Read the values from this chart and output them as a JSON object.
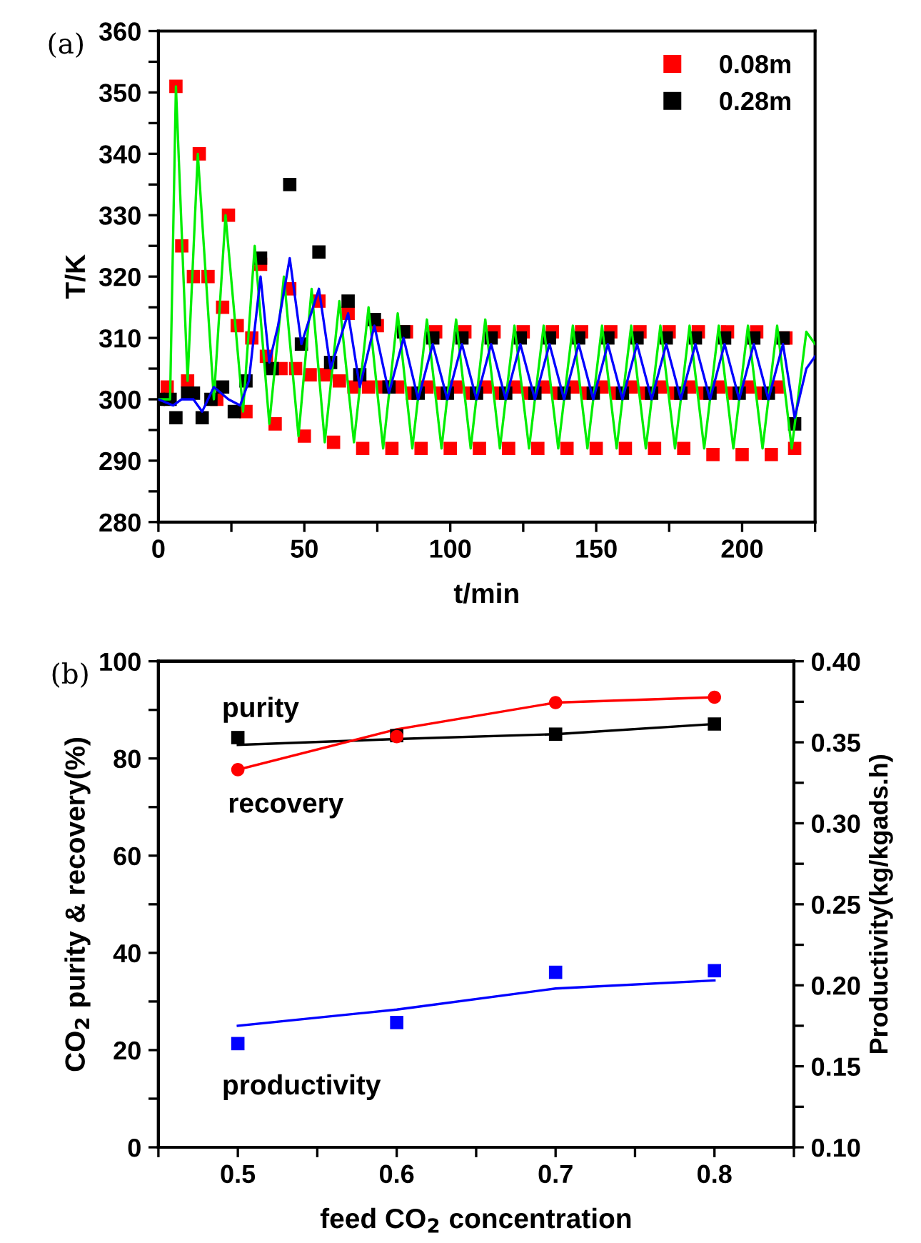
{
  "chart_data": [
    {
      "type": "scatter",
      "title": "(a)",
      "xlabel": "t/min",
      "ylabel": "T/K",
      "xlim": [
        0,
        225
      ],
      "ylim": [
        280,
        360
      ],
      "xticks": [
        0,
        {
          "value": 25,
          "label": null
        },
        50,
        {
          "value": 75,
          "label": null
        },
        100,
        {
          "value": 125,
          "label": null
        },
        150,
        {
          "value": 175,
          "label": null
        },
        200,
        {
          "value": 225,
          "label": null
        }
      ],
      "yticks": [
        280,
        {
          "value": 285,
          "label": null
        },
        290,
        {
          "value": 295,
          "label": null
        },
        300,
        {
          "value": 305,
          "label": null
        },
        310,
        {
          "value": 315,
          "label": null
        },
        320,
        {
          "value": 325,
          "label": null
        },
        330,
        {
          "value": 335,
          "label": null
        },
        340,
        {
          "value": 345,
          "label": null
        },
        350,
        {
          "value": 355,
          "label": null
        },
        360
      ],
      "legend": "top right",
      "grid": false,
      "series": [
        {
          "type": "line",
          "color": "#00ee00",
          "x": [
            0,
            4,
            6,
            10,
            13.5,
            19,
            23,
            29,
            33,
            38,
            43,
            48,
            52.5,
            57,
            62,
            67,
            72,
            77,
            82,
            87,
            92,
            97,
            102,
            107,
            112,
            117,
            122,
            127,
            132,
            137,
            142,
            147,
            152,
            157,
            162,
            167,
            172,
            177,
            182,
            187,
            192,
            197,
            202,
            207,
            212,
            217,
            222,
            225
          ],
          "values": [
            300,
            300,
            351,
            303,
            340,
            300,
            330,
            298,
            325,
            296,
            320,
            294,
            318,
            293,
            316,
            293,
            315,
            292,
            314,
            292,
            313,
            292,
            313,
            292,
            313,
            292,
            312,
            292,
            312,
            292,
            312,
            292,
            312,
            292,
            312,
            292,
            312,
            292,
            312,
            292,
            312,
            292,
            312,
            292,
            312,
            292,
            311,
            309
          ]
        },
        {
          "name": "0.08m",
          "color": "#ff0000",
          "marker": "square",
          "x": [
            3,
            6,
            8,
            10,
            12,
            14,
            17,
            20,
            22,
            24,
            27,
            30,
            32,
            35,
            37,
            40,
            42,
            45,
            47,
            50,
            52,
            55,
            57,
            60,
            62,
            65,
            67,
            70,
            72,
            75,
            77,
            80,
            82,
            85,
            87,
            90,
            92,
            95,
            97,
            100,
            102,
            105,
            107,
            110,
            112,
            115,
            117,
            120,
            122,
            125,
            127,
            130,
            132,
            135,
            137,
            140,
            142,
            145,
            147,
            150,
            152,
            155,
            157,
            160,
            162,
            165,
            167,
            170,
            172,
            175,
            177,
            180,
            182,
            185,
            187,
            190,
            192,
            195,
            197,
            200,
            202,
            205,
            207,
            210,
            212,
            215,
            218
          ],
          "values": [
            302,
            351,
            325,
            303,
            320,
            340,
            320,
            300,
            315,
            330,
            312,
            298,
            310,
            322,
            307,
            296,
            305,
            318,
            305,
            294,
            304,
            316,
            304,
            293,
            303,
            314,
            302,
            292,
            302,
            312,
            302,
            292,
            302,
            311,
            301,
            292,
            302,
            311,
            301,
            292,
            302,
            311,
            301,
            292,
            302,
            311,
            301,
            292,
            302,
            311,
            301,
            292,
            302,
            311,
            301,
            292,
            302,
            311,
            301,
            292,
            302,
            311,
            301,
            292,
            302,
            311,
            301,
            292,
            302,
            311,
            301,
            292,
            302,
            311,
            301,
            291,
            302,
            311,
            301,
            291,
            302,
            311,
            301,
            291,
            302,
            310,
            292
          ]
        },
        {
          "name": "0.28m",
          "color": "#000000",
          "marker": "square",
          "x": [
            0,
            4,
            6,
            10,
            12,
            15,
            18,
            22,
            26,
            30,
            35,
            39,
            45,
            49,
            55,
            59,
            65,
            69,
            74,
            79,
            84,
            89,
            94,
            99,
            104,
            109,
            114,
            119,
            124,
            129,
            134,
            139,
            144,
            149,
            154,
            159,
            164,
            169,
            174,
            179,
            184,
            189,
            194,
            199,
            204,
            209,
            214,
            218
          ],
          "values": [
            300,
            300,
            297,
            301,
            301,
            297,
            300,
            302,
            298,
            303,
            323,
            305,
            335,
            309,
            324,
            306,
            316,
            304,
            313,
            302,
            311,
            301,
            310,
            301,
            310,
            301,
            310,
            301,
            310,
            301,
            310,
            301,
            310,
            301,
            310,
            301,
            310,
            301,
            310,
            301,
            310,
            301,
            310,
            301,
            310,
            301,
            310,
            296
          ]
        },
        {
          "type": "line",
          "color": "#0000ff",
          "x": [
            0,
            5,
            8,
            12,
            15,
            19,
            24,
            28,
            31,
            35,
            38,
            41,
            45,
            49,
            55,
            59,
            65,
            69,
            74,
            79,
            84,
            89,
            94,
            99,
            104,
            109,
            114,
            119,
            124,
            129,
            134,
            139,
            144,
            149,
            154,
            159,
            164,
            169,
            174,
            179,
            184,
            189,
            194,
            199,
            204,
            209,
            214,
            218,
            222,
            225
          ],
          "values": [
            300,
            299,
            300,
            300,
            298,
            302,
            300,
            299,
            303,
            320,
            306,
            312,
            323,
            309,
            318,
            305,
            314,
            302,
            312,
            301,
            310,
            300,
            309,
            300,
            309,
            300,
            309,
            300,
            309,
            300,
            309,
            300,
            309,
            300,
            309,
            300,
            309,
            300,
            309,
            300,
            309,
            300,
            309,
            300,
            309,
            300,
            309,
            297,
            305,
            307
          ]
        }
      ]
    },
    {
      "type": "scatter",
      "title": "(b)",
      "xlabel": "feed CO$_{2}$ concentration",
      "ylabel": "CO$_{2}$ purity & recovery(%)",
      "y2label": "Productivity(kg/kgads.h)",
      "x": [
        0.5,
        0.6,
        0.7,
        0.8
      ],
      "xlim": [
        0.45,
        0.85
      ],
      "xticks": [
        {
          "value": 0.45,
          "label": null
        },
        0.5,
        {
          "value": 0.55,
          "label": null
        },
        0.6,
        {
          "value": 0.65,
          "label": null
        },
        0.7,
        {
          "value": 0.75,
          "label": null
        },
        0.8,
        {
          "value": 0.85,
          "label": null
        }
      ],
      "ylim": [
        0,
        100
      ],
      "yticks": [
        0,
        {
          "value": 10,
          "label": null
        },
        20,
        {
          "value": 30,
          "label": null
        },
        40,
        {
          "value": 50,
          "label": null
        },
        60,
        {
          "value": 70,
          "label": null
        },
        80,
        {
          "value": 90,
          "label": null
        },
        100
      ],
      "y2lim": [
        0.1,
        0.4
      ],
      "y2ticks": [
        {
          "value": 0.1,
          "label": "0.10"
        },
        {
          "value": 0.125,
          "label": null
        },
        {
          "value": 0.15,
          "label": "0.15"
        },
        {
          "value": 0.175,
          "label": null
        },
        {
          "value": 0.2,
          "label": "0.20"
        },
        {
          "value": 0.225,
          "label": null
        },
        {
          "value": 0.25,
          "label": "0.25"
        },
        {
          "value": 0.275,
          "label": null
        },
        {
          "value": 0.3,
          "label": "0.30"
        },
        {
          "value": 0.325,
          "label": null
        },
        {
          "value": 0.35,
          "label": "0.35"
        },
        {
          "value": 0.375,
          "label": null
        },
        {
          "value": 0.4,
          "label": "0.40"
        }
      ],
      "legend": false,
      "grid": false,
      "series": [
        {
          "name": "purity",
          "color": "#000000",
          "marker": "square",
          "values": [
            84.3,
            84.7,
            85.0,
            87.1
          ]
        },
        {
          "type": "line",
          "color": "#000000",
          "values": [
            82.8,
            84.0,
            85.0,
            87.1
          ]
        },
        {
          "name": "recovery",
          "color": "#ff0000",
          "marker": "circle",
          "values": [
            77.7,
            84.5,
            91.5,
            92.6
          ]
        },
        {
          "type": "line",
          "color": "#ff0000",
          "values": [
            77.7,
            86.0,
            91.5,
            92.6
          ]
        },
        {
          "name": "productivity",
          "color": "#0000ff",
          "marker": "square",
          "axis": "y2",
          "values": [
            0.164,
            0.177,
            0.208,
            0.209
          ]
        },
        {
          "type": "line",
          "color": "#0000ff",
          "axis": "y2",
          "values": [
            0.175,
            0.185,
            0.198,
            0.203
          ]
        }
      ]
    }
  ]
}
